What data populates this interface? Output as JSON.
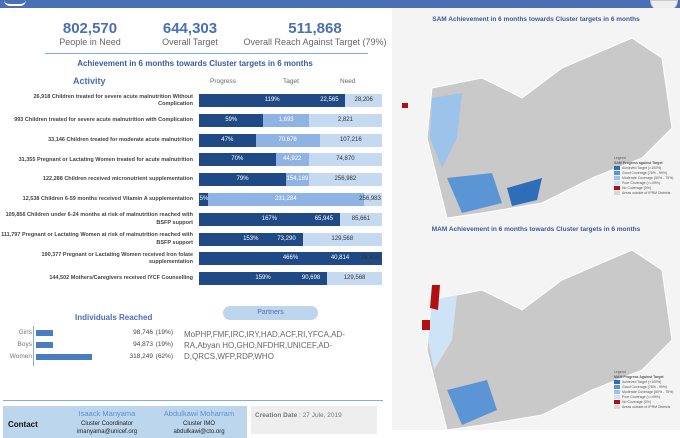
{
  "kpis": [
    {
      "value": "802,570",
      "label": "People in Need"
    },
    {
      "value": "644,303",
      "label": "Overall Target"
    },
    {
      "value": "511,868",
      "label": "Overall Reach Against Target (79%)"
    }
  ],
  "achievement_title": "Achievement in 6 months towards Cluster targets in 6 months",
  "columns": {
    "activity": "Activity",
    "progress": "Progress",
    "target": "Taget",
    "need": "Need"
  },
  "activities": [
    {
      "reached": "26,918",
      "label": "Children treated for severe acute malnutrition Without Complication",
      "progress": "119%",
      "target": "22,565",
      "need": "28,206"
    },
    {
      "reached": "993",
      "label": "Children treated for severe acute malnutrition with Complication",
      "progress": "59%",
      "target": "1,693",
      "need": "2,821"
    },
    {
      "reached": "33,146",
      "label": "Children treated for moderate acute malnutrition",
      "progress": "47%",
      "target": "70,678",
      "need": "107,216"
    },
    {
      "reached": "31,355",
      "label": "Pregnant or Lactating Women treated for acute malnutrition",
      "progress": "70%",
      "target": "44,922",
      "need": "74,870"
    },
    {
      "reached": "122,288",
      "label": "Children received micronutrient supplementation",
      "progress": "79%",
      "target": "154,189",
      "need": "256,982"
    },
    {
      "reached": "12,538",
      "label": "Children 6-59 months received Vitamin A supplementation",
      "progress": "5%",
      "target": "231,284",
      "need": "256,983"
    },
    {
      "reached": "109,856",
      "label": "Children under 6-24 months at risk of malnutrition reached with BSFP support",
      "progress": "167%",
      "target": "65,945",
      "need": "85,661"
    },
    {
      "reached": "111,797",
      "label": "Pregnant or Lactating Women at risk of malnutrition reached with BSFP support",
      "progress": "153%",
      "target": "73,290",
      "need": "129,568"
    },
    {
      "reached": "190,377",
      "label": "Pregnant or Lactating Women received Iron folate supplementation",
      "progress": "466%",
      "target": "40,814",
      "need": "38,306"
    },
    {
      "reached": "144,502",
      "label": "Mothers/Caregivers received IYCF Counselling",
      "progress": "159%",
      "target": "90,698",
      "need": "129,568"
    }
  ],
  "individuals": {
    "title": "Individuals Reached",
    "rows": [
      {
        "group": "Girls",
        "value": "98,746",
        "pct": "(19%)"
      },
      {
        "group": "Boys",
        "value": "94,873",
        "pct": "(19%)"
      },
      {
        "group": "Women",
        "value": "318,249",
        "pct": "(62%)"
      }
    ]
  },
  "partners": {
    "title": "Partners",
    "text": "MoPHP,FMF,IRC,IRY,HAD,ACF,RI,YFCA,AD-RA,Abyan HO,GHO,NFDHR,UNICEF,AD-D,QRCS,WFP,RDP,WHO"
  },
  "contact": {
    "label": "Contact",
    "people": [
      {
        "name": "Isaack Manyama",
        "role": "Cluster Coordinator",
        "email": "imanyama@unicef.org"
      },
      {
        "name": "Abdulkawi Moharram",
        "role": "Cluster IMO",
        "email": "abdulkawi@cto.org"
      }
    ]
  },
  "creation": {
    "label": "Creation Date",
    "value": ": 27 Jule, 2019"
  },
  "maps": [
    {
      "title": "SAM Achievement in 6 months towards Cluster targets in 6 months",
      "legend_title": "Legend",
      "legend_sub": "SAM Progress against Target",
      "items": [
        "Achieved Target (>100%)",
        "Good Coverage (76% - 99%)",
        "Moderate Coverage (50% - 75%)",
        "Poor Coverage (<=49%)",
        "No Coverage (0%)",
        "Areas outside of IPRM Districts"
      ]
    },
    {
      "title": "MAM Achievement in 6 months towards Cluster targets in 6 months",
      "legend_title": "Legend",
      "legend_sub": "MAM Progress Against Target",
      "items": [
        "Achieved Target (>100%)",
        "Good Coverage (76% - 99%)",
        "Moderate Coverage (50% - 75%)",
        "Poor Coverage (<=49%)",
        "No Coverage (0%)",
        "Areas outside of IPRM Districts"
      ]
    }
  ],
  "legend_colors": [
    "#2e6db8",
    "#5b95d6",
    "#9cc3ea",
    "#cfe3f6",
    "#b01010",
    "#d8d8d8"
  ]
}
